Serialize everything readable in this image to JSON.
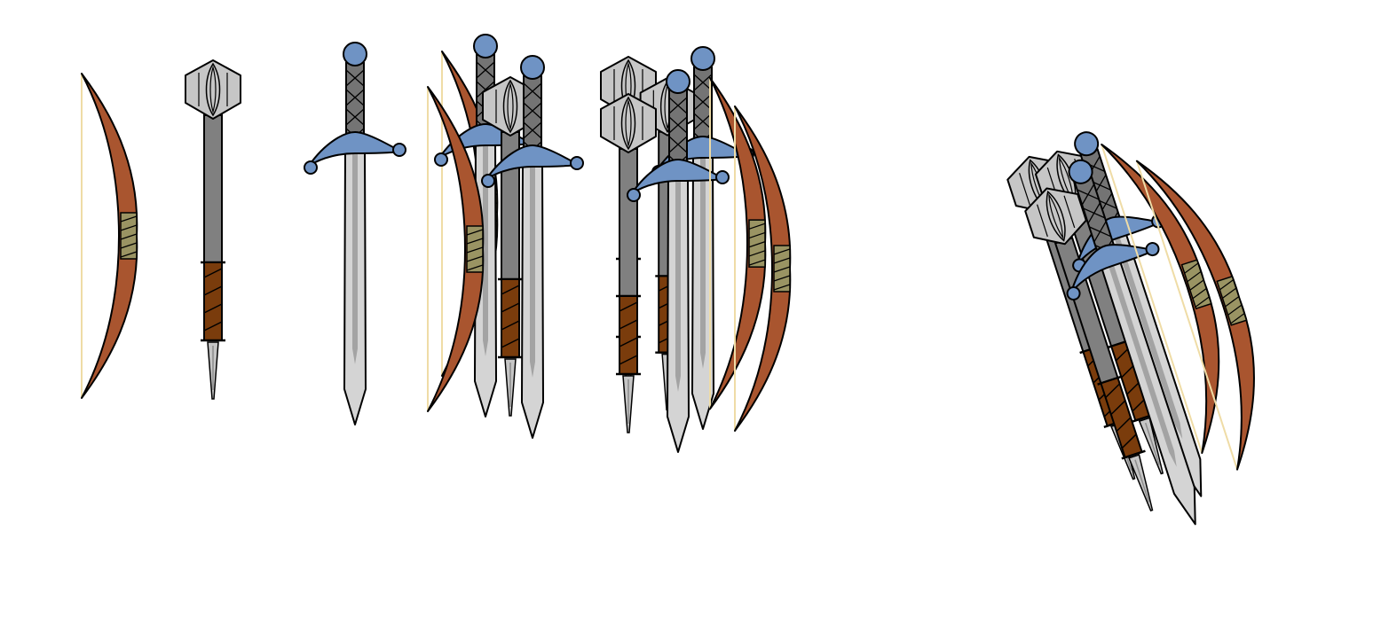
{
  "sprite_sheet": {
    "colors": {
      "background": "#ffffff",
      "outline": "#000000",
      "bow_wood": "#a9552f",
      "bow_string": "#efdca6",
      "bow_grip": "#9a9463",
      "blade": "#d4d4d4",
      "blade_fuller": "#a3a3a3",
      "sword_hilt": "#747474",
      "guard_and_pommel": "#6f93c4",
      "mace_head": "#c6c6c6",
      "mace_shaft": "#808080",
      "leather_wrap": "#7a3c0c"
    },
    "sprites": [
      {
        "name": "bow",
        "icon": "bow-icon"
      },
      {
        "name": "mace",
        "icon": "mace-icon"
      },
      {
        "name": "sword",
        "icon": "sword-icon"
      }
    ],
    "groups": [
      {
        "name": "stack-variant-1",
        "items": [
          "bow",
          "sword",
          "mace",
          "sword"
        ]
      },
      {
        "name": "stack-variant-2",
        "items": [
          "mace",
          "mace",
          "sword",
          "sword",
          "bow",
          "bow"
        ]
      },
      {
        "name": "stack-tilted",
        "items": [
          "mace",
          "mace",
          "sword",
          "sword",
          "bow",
          "bow"
        ],
        "tilt_degrees": -18
      }
    ]
  }
}
